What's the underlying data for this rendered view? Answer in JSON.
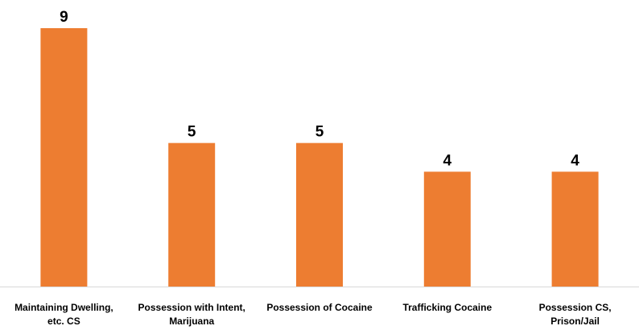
{
  "chart_data": {
    "type": "bar",
    "title": "",
    "xlabel": "",
    "ylabel": "",
    "categories": [
      [
        "Maintaining Dwelling,",
        "etc. CS"
      ],
      [
        "Possession with Intent,",
        "Marijuana"
      ],
      [
        "Possession of Cocaine"
      ],
      [
        "Trafficking Cocaine"
      ],
      [
        "Possession CS,",
        "Prison/Jail"
      ]
    ],
    "values": [
      9,
      5,
      5,
      4,
      4
    ],
    "ylim": [
      0,
      9
    ],
    "grid": false,
    "legend": "none",
    "bar_color": "#ED7D31"
  }
}
